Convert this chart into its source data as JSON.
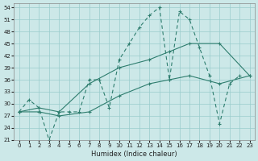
{
  "xlabel": "Humidex (Indice chaleur)",
  "background_color": "#cce8e8",
  "grid_color": "#99cccc",
  "line_color": "#2e7d6e",
  "xlim": [
    -0.5,
    23.5
  ],
  "ylim": [
    21,
    55
  ],
  "xticks": [
    0,
    1,
    2,
    3,
    4,
    5,
    6,
    7,
    8,
    9,
    10,
    11,
    12,
    13,
    14,
    15,
    16,
    17,
    18,
    19,
    20,
    21,
    22,
    23
  ],
  "yticks": [
    21,
    24,
    27,
    30,
    33,
    36,
    39,
    42,
    45,
    48,
    51,
    54
  ],
  "series_dashed": {
    "x": [
      0,
      1,
      2,
      3,
      4,
      5,
      6,
      7,
      8,
      9,
      10,
      11,
      12,
      13,
      14,
      15,
      16,
      17,
      18,
      19,
      20,
      21,
      22
    ],
    "y": [
      28,
      31,
      29,
      21,
      28,
      28,
      28,
      36,
      36,
      29,
      41,
      45,
      49,
      52,
      54,
      36,
      53,
      51,
      44,
      37,
      25,
      35,
      37
    ]
  },
  "series_upper": {
    "x": [
      0,
      2,
      4,
      7,
      10,
      13,
      15,
      17,
      20,
      23
    ],
    "y": [
      28,
      29,
      28,
      35,
      39,
      41,
      43,
      45,
      45,
      37
    ]
  },
  "series_lower": {
    "x": [
      0,
      2,
      4,
      7,
      10,
      13,
      15,
      17,
      20,
      23
    ],
    "y": [
      28,
      28,
      27,
      28,
      32,
      35,
      36,
      37,
      35,
      37
    ]
  }
}
